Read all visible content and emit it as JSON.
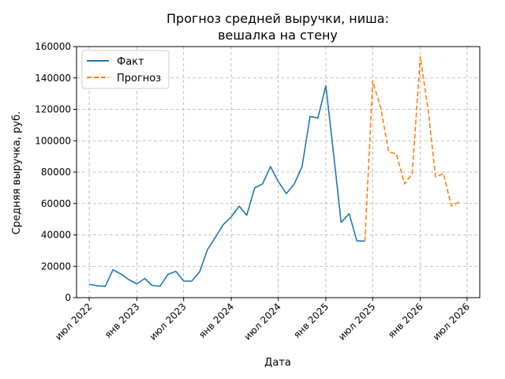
{
  "chart_data": {
    "type": "line",
    "title_lines": [
      "Прогноз средней выручки, ниша:",
      "вешалка на стену"
    ],
    "xlabel": "Дата",
    "ylabel": "Средняя выручка, руб.",
    "x_ticks": [
      {
        "date": "2022-07-01",
        "label": "июл 2022"
      },
      {
        "date": "2023-01-01",
        "label": "янв 2023"
      },
      {
        "date": "2023-07-01",
        "label": "июл 2023"
      },
      {
        "date": "2024-01-01",
        "label": "янв 2024"
      },
      {
        "date": "2024-07-01",
        "label": "июл 2024"
      },
      {
        "date": "2025-01-01",
        "label": "янв 2025"
      },
      {
        "date": "2025-07-01",
        "label": "июл 2025"
      },
      {
        "date": "2026-01-01",
        "label": "янв 2026"
      },
      {
        "date": "2026-07-01",
        "label": "июл 2026"
      }
    ],
    "y_ticks": [
      0,
      20000,
      40000,
      60000,
      80000,
      100000,
      120000,
      140000,
      160000
    ],
    "ylim": [
      0,
      160000
    ],
    "xlim": [
      "2022-05-13",
      "2026-08-19"
    ],
    "grid": true,
    "legend_position": "top-left",
    "series": [
      {
        "name": "Факт",
        "color": "#1f77b4",
        "dash": "solid",
        "points": [
          [
            "2022-07-01",
            8500
          ],
          [
            "2022-08-01",
            7600
          ],
          [
            "2022-09-01",
            7200
          ],
          [
            "2022-10-01",
            17800
          ],
          [
            "2022-11-01",
            15000
          ],
          [
            "2022-12-01",
            11500
          ],
          [
            "2023-01-01",
            8800
          ],
          [
            "2023-02-01",
            12200
          ],
          [
            "2023-03-01",
            7800
          ],
          [
            "2023-04-01",
            7300
          ],
          [
            "2023-05-01",
            14800
          ],
          [
            "2023-06-01",
            16800
          ],
          [
            "2023-07-01",
            10600
          ],
          [
            "2023-08-01",
            10500
          ],
          [
            "2023-09-01",
            16500
          ],
          [
            "2023-10-01",
            30500
          ],
          [
            "2023-11-01",
            38500
          ],
          [
            "2023-12-01",
            46500
          ],
          [
            "2024-01-01",
            51500
          ],
          [
            "2024-02-01",
            58300
          ],
          [
            "2024-03-01",
            52500
          ],
          [
            "2024-04-01",
            70000
          ],
          [
            "2024-05-01",
            72500
          ],
          [
            "2024-06-01",
            83500
          ],
          [
            "2024-07-01",
            74000
          ],
          [
            "2024-08-01",
            66300
          ],
          [
            "2024-09-01",
            72500
          ],
          [
            "2024-10-01",
            83500
          ],
          [
            "2024-11-01",
            115500
          ],
          [
            "2024-12-01",
            114500
          ],
          [
            "2025-01-01",
            135000
          ],
          [
            "2025-02-01",
            90000
          ],
          [
            "2025-03-01",
            48000
          ],
          [
            "2025-04-01",
            53500
          ],
          [
            "2025-05-01",
            36200
          ],
          [
            "2025-06-01",
            36000
          ]
        ]
      },
      {
        "name": "Прогноз",
        "color": "#ff7f0e",
        "dash": "dashed",
        "points": [
          [
            "2025-06-01",
            36000
          ],
          [
            "2025-07-01",
            138000
          ],
          [
            "2025-08-01",
            121000
          ],
          [
            "2025-09-01",
            93000
          ],
          [
            "2025-10-01",
            91500
          ],
          [
            "2025-11-01",
            72500
          ],
          [
            "2025-12-01",
            79000
          ],
          [
            "2026-01-01",
            153500
          ],
          [
            "2026-02-01",
            119000
          ],
          [
            "2026-03-01",
            77000
          ],
          [
            "2026-04-01",
            79000
          ],
          [
            "2026-05-01",
            58500
          ],
          [
            "2026-06-01",
            61000
          ]
        ]
      }
    ]
  }
}
